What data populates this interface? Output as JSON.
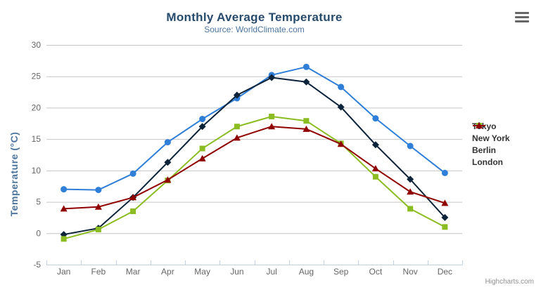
{
  "header": {
    "title": "Monthly Average Temperature",
    "subtitle": "Source: WorldClimate.com"
  },
  "footer": {
    "credit": "Highcharts.com"
  },
  "export_menu": {
    "icon": "hamburger-icon"
  },
  "colors": {
    "title": "#274b6d",
    "subtitle": "#4d759e",
    "axis_labels": "#666666",
    "axis_title": "#4d759e",
    "grid_line": "#c6c6c6",
    "axis_line": "#c0d0e0",
    "legend_text": "#333333",
    "credit_text": "#909090",
    "background": "#ffffff"
  },
  "chart_data": {
    "type": "line",
    "title": "Monthly Average Temperature",
    "subtitle": "Source: WorldClimate.com",
    "xlabel": "",
    "ylabel": "Temperature (°C)",
    "ylim": [
      -5,
      30
    ],
    "yticks": [
      30,
      25,
      20,
      15,
      10,
      5,
      0,
      -5
    ],
    "grid": true,
    "legend_position": "right",
    "categories": [
      "Jan",
      "Feb",
      "Mar",
      "Apr",
      "May",
      "Jun",
      "Jul",
      "Aug",
      "Sep",
      "Oct",
      "Nov",
      "Dec"
    ],
    "series": [
      {
        "name": "Tokyo",
        "color": "#2f7ed8",
        "marker": "circle",
        "values": [
          7.0,
          6.9,
          9.5,
          14.5,
          18.2,
          21.5,
          25.2,
          26.5,
          23.3,
          18.3,
          13.9,
          9.6
        ]
      },
      {
        "name": "New York",
        "color": "#0d233a",
        "marker": "diamond",
        "values": [
          -0.2,
          0.8,
          5.7,
          11.3,
          17.0,
          22.0,
          24.8,
          24.1,
          20.1,
          14.1,
          8.6,
          2.5
        ]
      },
      {
        "name": "Berlin",
        "color": "#8bbc21",
        "marker": "square",
        "values": [
          -0.9,
          0.6,
          3.5,
          8.4,
          13.5,
          17.0,
          18.6,
          17.9,
          14.3,
          9.0,
          3.9,
          1.0
        ]
      },
      {
        "name": "London",
        "color": "#910000",
        "marker": "triangle",
        "values": [
          3.9,
          4.2,
          5.7,
          8.5,
          11.9,
          15.2,
          17.0,
          16.6,
          14.2,
          10.3,
          6.6,
          4.8
        ]
      }
    ]
  }
}
